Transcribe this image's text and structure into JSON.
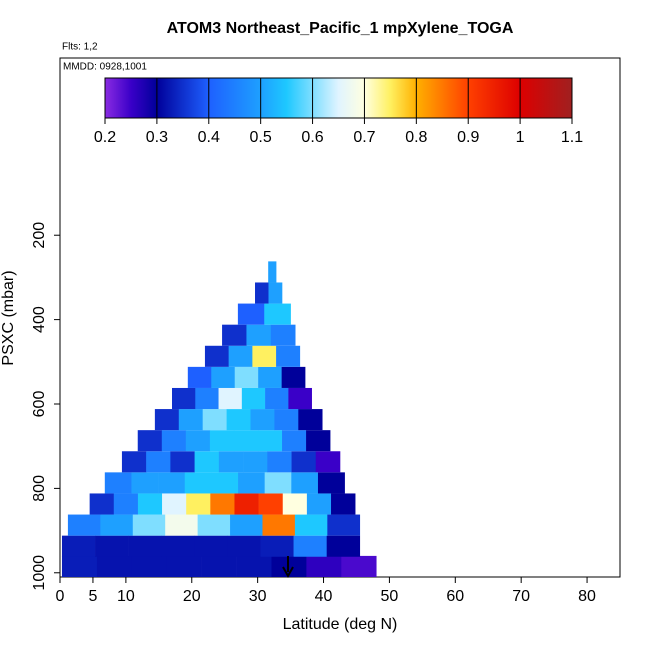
{
  "chart_data": {
    "type": "curtain",
    "title": "ATOM3 Northeast_Pacific_1 mpXylene_TOGA",
    "subtitle": "Flts: 1,2",
    "annotation": "MMDD: 0928,1001",
    "x_label": "Latitude (deg N)",
    "y_label": "PSXC (mbar)",
    "xlim": [
      0,
      85
    ],
    "xticks": [
      0,
      5,
      10,
      20,
      30,
      40,
      50,
      60,
      70,
      80
    ],
    "ylim": [
      1010,
      -220
    ],
    "yticks": [
      200,
      400,
      600,
      800,
      1000
    ],
    "row_height": 50,
    "colorbar_lim": [
      0.2,
      1.1
    ],
    "colorbar_ticks": [
      0.2,
      0.3,
      0.4,
      0.5,
      0.6,
      0.7,
      0.8,
      0.9,
      1.0,
      1.1
    ],
    "colormap": [
      {
        "value": 0.2,
        "color": "#8a2be2"
      },
      {
        "value": 0.25,
        "color": "#3a00c8"
      },
      {
        "value": 0.3,
        "color": "#00009a"
      },
      {
        "value": 0.4,
        "color": "#1e60ff"
      },
      {
        "value": 0.5,
        "color": "#1ea0ff"
      },
      {
        "value": 0.55,
        "color": "#1ec8ff"
      },
      {
        "value": 0.65,
        "color": "#e0f4ff"
      },
      {
        "value": 0.7,
        "color": "#ffffe0"
      },
      {
        "value": 0.75,
        "color": "#fff060"
      },
      {
        "value": 0.8,
        "color": "#ffb000"
      },
      {
        "value": 0.9,
        "color": "#ff4000"
      },
      {
        "value": 1.0,
        "color": "#dd0000"
      },
      {
        "value": 1.1,
        "color": "#a02020"
      }
    ],
    "rows": [
      {
        "pressure": 985,
        "lat": [
          0.3,
          48
        ],
        "values": [
          0.33,
          0.32,
          0.32,
          0.32,
          0.32,
          0.32,
          0.3,
          0.26,
          0.24
        ]
      },
      {
        "pressure": 937,
        "lat": [
          0.3,
          45.5
        ],
        "values": [
          0.33,
          0.32,
          0.32,
          0.32,
          0.32,
          0.32,
          0.33,
          0.45,
          0.3
        ]
      },
      {
        "pressure": 887,
        "lat": [
          1.2,
          45.5
        ],
        "values": [
          0.45,
          0.5,
          0.6,
          0.68,
          0.6,
          0.5,
          0.85,
          0.55,
          0.35
        ]
      },
      {
        "pressure": 837,
        "lat": [
          4.5,
          44.8
        ],
        "values": [
          0.35,
          0.45,
          0.55,
          0.65,
          0.75,
          0.85,
          0.95,
          0.9,
          0.7,
          0.5,
          0.3
        ]
      },
      {
        "pressure": 787,
        "lat": [
          6.8,
          43.2
        ],
        "values": [
          0.45,
          0.5,
          0.5,
          0.55,
          0.55,
          0.5,
          0.6,
          0.5,
          0.3
        ]
      },
      {
        "pressure": 737,
        "lat": [
          9.4,
          42.5
        ],
        "values": [
          0.35,
          0.45,
          0.35,
          0.55,
          0.5,
          0.5,
          0.45,
          0.35,
          0.25
        ]
      },
      {
        "pressure": 687,
        "lat": [
          11.8,
          41
        ],
        "values": [
          0.35,
          0.45,
          0.5,
          0.55,
          0.55,
          0.55,
          0.45,
          0.3
        ]
      },
      {
        "pressure": 637,
        "lat": [
          14.4,
          39.8
        ],
        "values": [
          0.35,
          0.5,
          0.6,
          0.55,
          0.5,
          0.45,
          0.3
        ]
      },
      {
        "pressure": 587,
        "lat": [
          17,
          38.2
        ],
        "values": [
          0.35,
          0.45,
          0.65,
          0.55,
          0.45,
          0.25
        ]
      },
      {
        "pressure": 537,
        "lat": [
          19.4,
          37.2
        ],
        "values": [
          0.4,
          0.5,
          0.6,
          0.5,
          0.3
        ]
      },
      {
        "pressure": 487,
        "lat": [
          22,
          36.4
        ],
        "values": [
          0.35,
          0.5,
          0.75,
          0.45
        ]
      },
      {
        "pressure": 437,
        "lat": [
          24.6,
          35.7
        ],
        "values": [
          0.35,
          0.5,
          0.45
        ]
      },
      {
        "pressure": 387,
        "lat": [
          27,
          35
        ],
        "values": [
          0.4,
          0.55
        ]
      },
      {
        "pressure": 337,
        "lat": [
          29.6,
          33.7
        ],
        "values": [
          0.35,
          0.5
        ]
      },
      {
        "pressure": 287,
        "lat": [
          31.6,
          32.8
        ],
        "values": [
          0.5
        ]
      }
    ]
  }
}
